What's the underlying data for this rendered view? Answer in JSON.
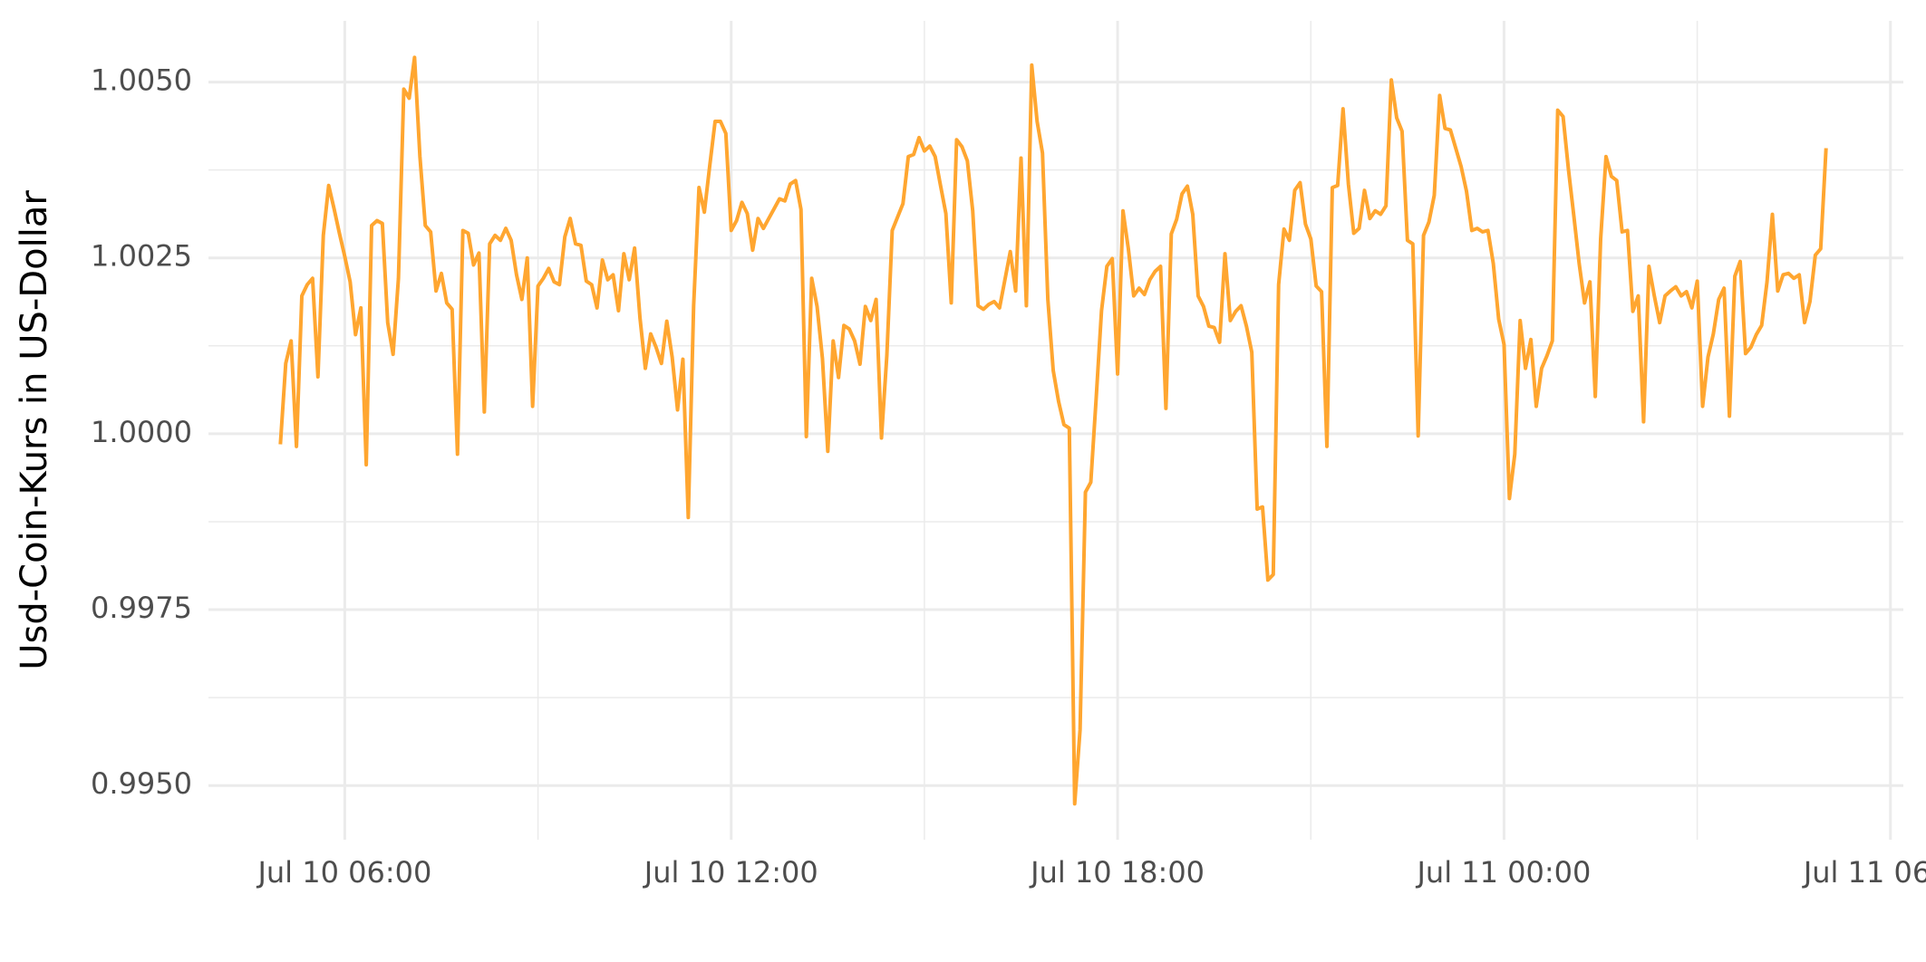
{
  "chart_data": {
    "type": "line",
    "y_label": "Usd-Coin-Kurs in US-Dollar",
    "color": "#ffa630",
    "grid": true,
    "xlim": [
      "Jul 10 03:53",
      "Jul 11 06:12"
    ],
    "xticks": [
      "Jul 10 06:00",
      "Jul 10 12:00",
      "Jul 10 18:00",
      "Jul 11 00:00",
      "Jul 11 06:00"
    ],
    "ylim": [
      0.99423,
      1.00587
    ],
    "yticks": [
      {
        "value": 0.995,
        "label": "0.9950"
      },
      0.9975,
      {
        "value": 1,
        "label": "1.0000"
      },
      1.0025,
      {
        "value": 1.005,
        "label": "1.0050"
      }
    ],
    "x": [
      "Jul 10 05:00",
      "Jul 10 05:05",
      "Jul 10 05:10",
      "Jul 10 05:15",
      "Jul 10 05:20",
      "Jul 10 05:25",
      "Jul 10 05:30",
      "Jul 10 05:35",
      "Jul 10 05:40",
      "Jul 10 05:45",
      "Jul 10 05:50",
      "Jul 10 05:55",
      "Jul 10 06:00",
      "Jul 10 06:05",
      "Jul 10 06:10",
      "Jul 10 06:15",
      "Jul 10 06:20",
      "Jul 10 06:25",
      "Jul 10 06:30",
      "Jul 10 06:35",
      "Jul 10 06:40",
      "Jul 10 06:45",
      "Jul 10 06:50",
      "Jul 10 06:55",
      "Jul 10 07:00",
      "Jul 10 07:05",
      "Jul 10 07:10",
      "Jul 10 07:15",
      "Jul 10 07:20",
      "Jul 10 07:25",
      "Jul 10 07:30",
      "Jul 10 07:35",
      "Jul 10 07:40",
      "Jul 10 07:45",
      "Jul 10 07:50",
      "Jul 10 07:55",
      "Jul 10 08:00",
      "Jul 10 08:05",
      "Jul 10 08:10",
      "Jul 10 08:15",
      "Jul 10 08:20",
      "Jul 10 08:25",
      "Jul 10 08:30",
      "Jul 10 08:35",
      "Jul 10 08:40",
      "Jul 10 08:45",
      "Jul 10 08:50",
      "Jul 10 08:55",
      "Jul 10 09:00",
      "Jul 10 09:05",
      "Jul 10 09:10",
      "Jul 10 09:15",
      "Jul 10 09:20",
      "Jul 10 09:25",
      "Jul 10 09:30",
      "Jul 10 09:35",
      "Jul 10 09:40",
      "Jul 10 09:45",
      "Jul 10 09:50",
      "Jul 10 09:55",
      "Jul 10 10:00",
      "Jul 10 10:05",
      "Jul 10 10:10",
      "Jul 10 10:15",
      "Jul 10 10:20",
      "Jul 10 10:25",
      "Jul 10 10:30",
      "Jul 10 10:35",
      "Jul 10 10:40",
      "Jul 10 10:45",
      "Jul 10 10:50",
      "Jul 10 10:55",
      "Jul 10 11:00",
      "Jul 10 11:05",
      "Jul 10 11:10",
      "Jul 10 11:15",
      "Jul 10 11:20",
      "Jul 10 11:25",
      "Jul 10 11:30",
      "Jul 10 11:35",
      "Jul 10 11:40",
      "Jul 10 11:45",
      "Jul 10 11:50",
      "Jul 10 11:55",
      "Jul 10 12:00",
      "Jul 10 12:05",
      "Jul 10 12:10",
      "Jul 10 12:15",
      "Jul 10 12:20",
      "Jul 10 12:25",
      "Jul 10 12:30",
      "Jul 10 12:35",
      "Jul 10 12:40",
      "Jul 10 12:45",
      "Jul 10 12:50",
      "Jul 10 12:55",
      "Jul 10 13:00",
      "Jul 10 13:05",
      "Jul 10 13:10",
      "Jul 10 13:15",
      "Jul 10 13:20",
      "Jul 10 13:25",
      "Jul 10 13:30",
      "Jul 10 13:35",
      "Jul 10 13:40",
      "Jul 10 13:45",
      "Jul 10 13:50",
      "Jul 10 13:55",
      "Jul 10 14:00",
      "Jul 10 14:05",
      "Jul 10 14:10",
      "Jul 10 14:15",
      "Jul 10 14:20",
      "Jul 10 14:25",
      "Jul 10 14:30",
      "Jul 10 14:35",
      "Jul 10 14:40",
      "Jul 10 14:45",
      "Jul 10 14:50",
      "Jul 10 14:55",
      "Jul 10 15:00",
      "Jul 10 15:05",
      "Jul 10 15:10",
      "Jul 10 15:15",
      "Jul 10 15:20",
      "Jul 10 15:25",
      "Jul 10 15:30",
      "Jul 10 15:35",
      "Jul 10 15:40",
      "Jul 10 15:45",
      "Jul 10 15:50",
      "Jul 10 15:55",
      "Jul 10 16:00",
      "Jul 10 16:05",
      "Jul 10 16:10",
      "Jul 10 16:15",
      "Jul 10 16:20",
      "Jul 10 16:25",
      "Jul 10 16:30",
      "Jul 10 16:35",
      "Jul 10 16:40",
      "Jul 10 16:45",
      "Jul 10 16:50",
      "Jul 10 16:55",
      "Jul 10 17:00",
      "Jul 10 17:05",
      "Jul 10 17:10",
      "Jul 10 17:15",
      "Jul 10 17:20",
      "Jul 10 17:25",
      "Jul 10 17:30",
      "Jul 10 17:35",
      "Jul 10 17:40",
      "Jul 10 17:45",
      "Jul 10 17:50",
      "Jul 10 17:55",
      "Jul 10 18:00",
      "Jul 10 18:05",
      "Jul 10 18:10",
      "Jul 10 18:15",
      "Jul 10 18:20",
      "Jul 10 18:25",
      "Jul 10 18:30",
      "Jul 10 18:35",
      "Jul 10 18:40",
      "Jul 10 18:45",
      "Jul 10 18:50",
      "Jul 10 18:55",
      "Jul 10 19:00",
      "Jul 10 19:05",
      "Jul 10 19:10",
      "Jul 10 19:15",
      "Jul 10 19:20",
      "Jul 10 19:25",
      "Jul 10 19:30",
      "Jul 10 19:35",
      "Jul 10 19:40",
      "Jul 10 19:45",
      "Jul 10 19:50",
      "Jul 10 19:55",
      "Jul 10 20:00",
      "Jul 10 20:05",
      "Jul 10 20:10",
      "Jul 10 20:15",
      "Jul 10 20:20",
      "Jul 10 20:25",
      "Jul 10 20:30",
      "Jul 10 20:35",
      "Jul 10 20:40",
      "Jul 10 20:45",
      "Jul 10 20:50",
      "Jul 10 20:55",
      "Jul 10 21:00",
      "Jul 10 21:05",
      "Jul 10 21:10",
      "Jul 10 21:15",
      "Jul 10 21:20",
      "Jul 10 21:25",
      "Jul 10 21:30",
      "Jul 10 21:35",
      "Jul 10 21:40",
      "Jul 10 21:45",
      "Jul 10 21:50",
      "Jul 10 21:55",
      "Jul 10 22:00",
      "Jul 10 22:05",
      "Jul 10 22:10",
      "Jul 10 22:15",
      "Jul 10 22:20",
      "Jul 10 22:25",
      "Jul 10 22:30",
      "Jul 10 22:35",
      "Jul 10 22:40",
      "Jul 10 22:45",
      "Jul 10 22:50",
      "Jul 10 22:55",
      "Jul 10 23:00",
      "Jul 10 23:05",
      "Jul 10 23:10",
      "Jul 10 23:15",
      "Jul 10 23:20",
      "Jul 10 23:25",
      "Jul 10 23:30",
      "Jul 10 23:35",
      "Jul 10 23:40",
      "Jul 10 23:45",
      "Jul 10 23:50",
      "Jul 10 23:55",
      "Jul 11 00:00",
      "Jul 11 00:05",
      "Jul 11 00:10",
      "Jul 11 00:15",
      "Jul 11 00:20",
      "Jul 11 00:25",
      "Jul 11 00:30",
      "Jul 11 00:35",
      "Jul 11 00:40",
      "Jul 11 00:45",
      "Jul 11 00:50",
      "Jul 11 00:55",
      "Jul 11 01:00",
      "Jul 11 01:05",
      "Jul 11 01:10",
      "Jul 11 01:15",
      "Jul 11 01:20",
      "Jul 11 01:25",
      "Jul 11 01:30",
      "Jul 11 01:35",
      "Jul 11 01:40",
      "Jul 11 01:45",
      "Jul 11 01:50",
      "Jul 11 01:55",
      "Jul 11 02:00",
      "Jul 11 02:05",
      "Jul 11 02:10",
      "Jul 11 02:15",
      "Jul 11 02:20",
      "Jul 11 02:25",
      "Jul 11 02:30",
      "Jul 11 02:35",
      "Jul 11 02:40",
      "Jul 11 02:45",
      "Jul 11 02:50",
      "Jul 11 02:55",
      "Jul 11 03:00",
      "Jul 11 03:05",
      "Jul 11 03:10",
      "Jul 11 03:15",
      "Jul 11 03:20",
      "Jul 11 03:25",
      "Jul 11 03:30",
      "Jul 11 03:35",
      "Jul 11 03:40",
      "Jul 11 03:45",
      "Jul 11 03:50",
      "Jul 11 03:55",
      "Jul 11 04:00",
      "Jul 11 04:05",
      "Jul 11 04:10",
      "Jul 11 04:15",
      "Jul 11 04:20",
      "Jul 11 04:25",
      "Jul 11 04:30",
      "Jul 11 04:35",
      "Jul 11 04:40",
      "Jul 11 04:45",
      "Jul 11 04:50",
      "Jul 11 04:55",
      "Jul 11 05:00"
    ],
    "values": [
      0.99985,
      1.001,
      1.00132,
      0.99982,
      1.00196,
      1.00212,
      1.00221,
      1.00081,
      1.00282,
      1.00353,
      1.0032,
      1.00285,
      1.00252,
      1.00216,
      1.00141,
      1.00179,
      0.99956,
      1.00296,
      1.00303,
      1.00299,
      1.00158,
      1.00113,
      1.00221,
      1.0049,
      1.00477,
      1.00535,
      1.00394,
      1.00296,
      1.00287,
      1.00203,
      1.00228,
      1.00186,
      1.00177,
      0.99971,
      1.00289,
      1.00285,
      1.0024,
      1.00257,
      1.00031,
      1.0027,
      1.00282,
      1.00275,
      1.00292,
      1.00275,
      1.00226,
      1.00191,
      1.0025,
      1.00039,
      1.0021,
      1.00221,
      1.00235,
      1.00216,
      1.00212,
      1.0028,
      1.00306,
      1.0027,
      1.00268,
      1.00217,
      1.00212,
      1.00179,
      1.00247,
      1.00219,
      1.00226,
      1.00175,
      1.00256,
      1.00219,
      1.00264,
      1.00165,
      1.00093,
      1.00142,
      1.00123,
      1.001,
      1.0016,
      1.00109,
      1.00034,
      1.00106,
      0.99881,
      1.00182,
      1.0035,
      1.00315,
      1.00381,
      1.00444,
      1.00444,
      1.00427,
      1.00289,
      1.00303,
      1.00329,
      1.00313,
      1.00261,
      1.00306,
      1.00292,
      1.00306,
      1.0032,
      1.00334,
      1.00331,
      1.00355,
      1.0036,
      1.00319,
      0.99996,
      1.00221,
      1.00181,
      1.00107,
      0.99975,
      1.00132,
      1.0008,
      1.00154,
      1.00149,
      1.00132,
      1.00099,
      1.00181,
      1.00161,
      1.00191,
      0.99994,
      1.00111,
      1.00289,
      1.00308,
      1.00327,
      1.00394,
      1.00397,
      1.00421,
      1.00402,
      1.00409,
      1.00394,
      1.00353,
      1.00313,
      1.00186,
      1.00418,
      1.00408,
      1.00388,
      1.00317,
      1.00182,
      1.00177,
      1.00184,
      1.00188,
      1.00179,
      1.00219,
      1.00259,
      1.00203,
      1.00392,
      1.00182,
      1.00524,
      1.00444,
      1.00399,
      1.00191,
      1.0009,
      1.00046,
      1.00013,
      1.00008,
      0.99474,
      0.99579,
      0.99917,
      0.99931,
      1.0005,
      1.00175,
      1.00238,
      1.00249,
      1.00085,
      1.00317,
      1.00263,
      1.00196,
      1.00207,
      1.00198,
      1.00219,
      1.00231,
      1.00238,
      1.00036,
      1.00284,
      1.00305,
      1.00341,
      1.00352,
      1.00312,
      1.00196,
      1.00181,
      1.00153,
      1.00151,
      1.0013,
      1.00256,
      1.00161,
      1.00174,
      1.00182,
      1.00153,
      1.00116,
      0.99893,
      0.99896,
      0.99792,
      0.998,
      1.00212,
      1.00291,
      1.00275,
      1.00346,
      1.00357,
      1.00298,
      1.00277,
      1.0021,
      1.00202,
      0.99982,
      1.0035,
      1.00353,
      1.00462,
      1.00355,
      1.00285,
      1.00292,
      1.00346,
      1.00306,
      1.00317,
      1.00312,
      1.00324,
      1.00503,
      1.00449,
      1.0043,
      1.00275,
      1.0027,
      0.99997,
      1.00282,
      1.00301,
      1.00339,
      1.00481,
      1.00434,
      1.00432,
      1.00406,
      1.0038,
      1.00345,
      1.00289,
      1.00292,
      1.00287,
      1.00289,
      1.00242,
      1.00163,
      1.00127,
      0.99908,
      0.99971,
      1.00161,
      1.00093,
      1.00134,
      1.00039,
      1.00093,
      1.00111,
      1.00132,
      1.0046,
      1.00451,
      1.00376,
      1.0031,
      1.00242,
      1.00186,
      1.00216,
      1.00053,
      1.00277,
      1.00394,
      1.00366,
      1.0036,
      1.00287,
      1.00289,
      1.00174,
      1.00196,
      1.00017,
      1.00238,
      1.00196,
      1.00158,
      1.00196,
      1.00203,
      1.00209,
      1.00196,
      1.00202,
      1.00179,
      1.00217,
      1.00039,
      1.00109,
      1.00142,
      1.00191,
      1.00207,
      1.00025,
      1.00224,
      1.00245,
      1.00114,
      1.00123,
      1.00141,
      1.00154,
      1.00216,
      1.00312,
      1.00203,
      1.00226,
      1.00228,
      1.00221,
      1.00226,
      1.00158,
      1.00188,
      1.00254,
      1.00263,
      1.00406
    ]
  }
}
